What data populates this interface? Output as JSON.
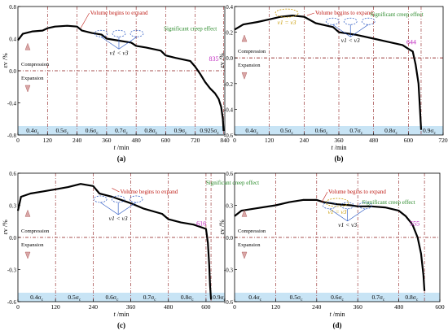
{
  "chart_data": [
    {
      "type": "line",
      "panel_label": "(a)",
      "xlabel": "t /min",
      "ylabel": "εv /%",
      "xlim": [
        0,
        840
      ],
      "ylim": [
        -0.8,
        0.8
      ],
      "xticks": [
        0,
        120,
        240,
        360,
        480,
        600,
        720,
        840
      ],
      "yticks": [
        -0.8,
        -0.4,
        0.0,
        0.4,
        0.8
      ],
      "ytick_labels": [
        "-0.8",
        "-0.4",
        "0.0",
        "0.4",
        "0.8"
      ],
      "stage_boundaries": [
        120,
        240,
        360,
        480,
        600,
        720,
        835
      ],
      "stage_labels": [
        "0.4σc",
        "0.5σc",
        "0.6σc",
        "0.7σc",
        "0.8σc",
        "0.9σc",
        "0.925σc"
      ],
      "end_time": 835,
      "end_label": "835",
      "x": [
        0,
        20,
        60,
        100,
        120,
        150,
        200,
        240,
        260,
        300,
        340,
        360,
        400,
        460,
        480,
        520,
        580,
        600,
        640,
        700,
        720,
        740,
        760,
        780,
        800,
        815,
        825,
        832,
        835
      ],
      "y": [
        0.38,
        0.46,
        0.49,
        0.5,
        0.53,
        0.55,
        0.56,
        0.55,
        0.5,
        0.47,
        0.45,
        0.4,
        0.38,
        0.35,
        0.31,
        0.29,
        0.25,
        0.19,
        0.16,
        0.12,
        0.05,
        -0.04,
        -0.14,
        -0.22,
        -0.28,
        -0.35,
        -0.45,
        -0.6,
        -0.75
      ],
      "zone_labels": {
        "upper": "Compression",
        "lower": "Expansion"
      },
      "annotations": {
        "volume": "Volume begins to expand",
        "creep": "Significant creep effect",
        "v_rel": "v1 < v3"
      }
    },
    {
      "type": "line",
      "panel_label": "(b)",
      "xlabel": "t /min",
      "ylabel": "εv /%",
      "xlim": [
        0,
        720
      ],
      "ylim": [
        -0.6,
        0.4
      ],
      "xticks": [
        0,
        120,
        240,
        360,
        480,
        600,
        720
      ],
      "yticks": [
        -0.6,
        -0.4,
        -0.2,
        0.0,
        0.2,
        0.4
      ],
      "ytick_labels": [
        "-0.6",
        "-0.4",
        "-0.2",
        "0.0",
        "0.2",
        "0.4"
      ],
      "stage_boundaries": [
        120,
        240,
        360,
        480,
        600,
        644
      ],
      "stage_labels": [
        "0.4σc",
        "0.5σc",
        "0.6σc",
        "0.7σc",
        "0.8σc",
        "0.9σc"
      ],
      "end_time": 644,
      "end_label": "644",
      "x": [
        0,
        30,
        80,
        120,
        160,
        200,
        240,
        280,
        340,
        360,
        420,
        480,
        520,
        580,
        600,
        615,
        625,
        635,
        640,
        644
      ],
      "y": [
        0.22,
        0.26,
        0.28,
        0.3,
        0.32,
        0.33,
        0.32,
        0.27,
        0.24,
        0.2,
        0.18,
        0.15,
        0.13,
        0.1,
        0.07,
        0.05,
        -0.05,
        -0.2,
        -0.4,
        -0.56
      ],
      "zone_labels": {
        "upper": "Compression",
        "lower": "Expansion"
      },
      "annotations": {
        "volume": "Volume begins to expand",
        "creep": "Significant creep effect",
        "v_rel": "v1 < v3",
        "v_eq": "v1 = v3"
      }
    },
    {
      "type": "line",
      "panel_label": "(c)",
      "xlabel": "t /min",
      "ylabel": "εv /%",
      "xlim": [
        0,
        660
      ],
      "ylim": [
        -0.6,
        0.6
      ],
      "xticks": [
        0,
        120,
        240,
        360,
        480,
        600
      ],
      "yticks": [
        -0.6,
        -0.3,
        0.0,
        0.3,
        0.6
      ],
      "ytick_labels": [
        "-0.6",
        "-0.3",
        "0.0",
        "0.3",
        "0.6"
      ],
      "stage_boundaries": [
        120,
        240,
        360,
        480,
        600,
        616
      ],
      "stage_labels": [
        "0.4σc",
        "0.5σc",
        "0.6σc",
        "0.7σc",
        "0.8σc",
        "0.9σc"
      ],
      "end_time": 616,
      "end_label": "616",
      "x": [
        0,
        10,
        40,
        80,
        120,
        160,
        200,
        240,
        260,
        300,
        360,
        400,
        460,
        480,
        520,
        560,
        600,
        606,
        610,
        613,
        616
      ],
      "y": [
        0.25,
        0.38,
        0.41,
        0.43,
        0.45,
        0.47,
        0.5,
        0.48,
        0.41,
        0.38,
        0.32,
        0.27,
        0.22,
        0.17,
        0.14,
        0.12,
        0.08,
        -0.05,
        -0.25,
        -0.45,
        -0.58
      ],
      "zone_labels": {
        "upper": "Compression",
        "lower": "Expansion"
      },
      "annotations": {
        "volume": "Volume begins to expand",
        "creep": "Significant creep effect",
        "v_rel": "v1 < v3"
      }
    },
    {
      "type": "line",
      "panel_label": "(d)",
      "xlabel": "t /min",
      "ylabel": "εv /%",
      "xlim": [
        0,
        600
      ],
      "ylim": [
        -0.6,
        0.6
      ],
      "xticks": [
        0,
        120,
        240,
        360,
        480,
        600
      ],
      "yticks": [
        -0.6,
        -0.3,
        0.0,
        0.3,
        0.6
      ],
      "ytick_labels": [
        "-0.6",
        "-0.3",
        "0.0",
        "0.3",
        "0.6"
      ],
      "stage_boundaries": [
        120,
        240,
        360,
        480,
        555
      ],
      "stage_labels": [
        "0.4σc",
        "0.5σc",
        "0.6σc",
        "0.7σc",
        "0.8σc"
      ],
      "end_time": 555,
      "end_label": "555",
      "x": [
        0,
        20,
        60,
        120,
        160,
        200,
        240,
        260,
        300,
        340,
        360,
        400,
        440,
        480,
        500,
        520,
        535,
        545,
        552,
        555
      ],
      "y": [
        0.2,
        0.25,
        0.27,
        0.3,
        0.33,
        0.35,
        0.35,
        0.33,
        0.31,
        0.3,
        0.29,
        0.29,
        0.28,
        0.25,
        0.2,
        0.12,
        0.0,
        -0.15,
        -0.35,
        -0.5
      ],
      "zone_labels": {
        "upper": "Compression",
        "lower": "Expansion"
      },
      "annotations": {
        "volume": "Volume begins to expand",
        "creep": "Significant creep effect",
        "v_rel": "v1 < v3",
        "v_eq": "v1 = v3"
      }
    }
  ]
}
